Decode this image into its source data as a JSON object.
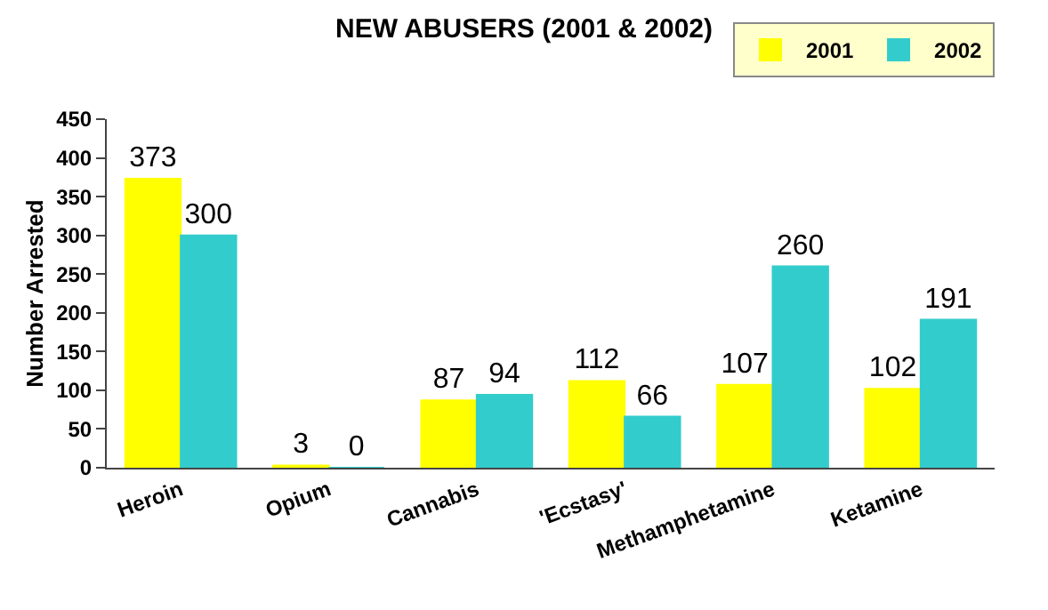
{
  "chart_data": {
    "type": "bar",
    "title": "NEW ABUSERS (2001 & 2002)",
    "ylabel": "Number Arrested",
    "categories": [
      "Heroin",
      "Opium",
      "Cannabis",
      "'Ecstasy'",
      "Methamphetamine",
      "Ketamine"
    ],
    "series": [
      {
        "name": "2001",
        "color": "#ffff00",
        "values": [
          373,
          3,
          87,
          112,
          107,
          102
        ]
      },
      {
        "name": "2002",
        "color": "#33cccc",
        "values": [
          300,
          0,
          94,
          66,
          260,
          191
        ]
      }
    ],
    "ylim": [
      0,
      450
    ],
    "yticks": [
      0,
      50,
      100,
      150,
      200,
      250,
      300,
      350,
      400,
      450
    ],
    "data_labels": true,
    "grid": false,
    "legend": "top right"
  }
}
